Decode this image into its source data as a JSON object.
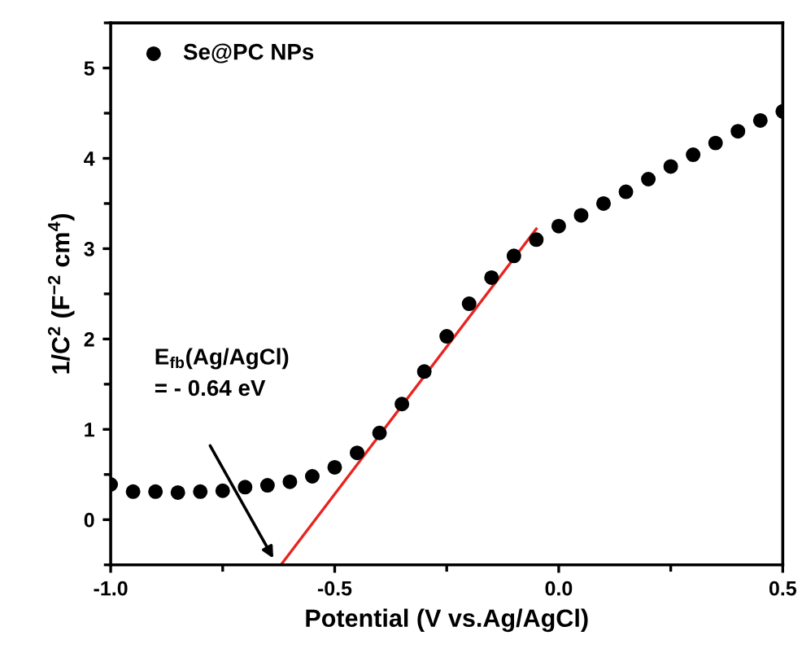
{
  "chart_data": {
    "type": "scatter",
    "xlabel": "Potential (V vs.Ag/AgCl)",
    "ylabel": "1/C$^{2}$ (F$^{−2}$ cm$^{4}$)",
    "xlim": [
      -1.0,
      0.5
    ],
    "xticks": [
      {
        "value": -1.0,
        "label": "-1.0"
      },
      {
        "value": -0.5,
        "label": "-0.5"
      },
      {
        "value": 0.0,
        "label": "0.0"
      },
      {
        "value": 0.5,
        "label": "0.5"
      }
    ],
    "ylim": [
      -0.5,
      5.5
    ],
    "yticks": [
      0,
      1,
      2,
      3,
      4,
      5
    ],
    "grid": false,
    "legend": "top left",
    "series": [
      {
        "name": "Se@PC NPs",
        "marker": "circle",
        "color": "#000000",
        "x": [
          -1.0,
          -0.95,
          -0.9,
          -0.85,
          -0.8,
          -0.75,
          -0.7,
          -0.65,
          -0.6,
          -0.55,
          -0.5,
          -0.45,
          -0.4,
          -0.35,
          -0.3,
          -0.25,
          -0.2,
          -0.15,
          -0.1,
          -0.05,
          0.0,
          0.05,
          0.1,
          0.15,
          0.2,
          0.25,
          0.3,
          0.35,
          0.4,
          0.45,
          0.5
        ],
        "values": [
          0.39,
          0.31,
          0.31,
          0.3,
          0.31,
          0.32,
          0.36,
          0.38,
          0.42,
          0.48,
          0.58,
          0.74,
          0.96,
          1.28,
          1.64,
          2.03,
          2.39,
          2.68,
          2.92,
          3.1,
          3.25,
          3.37,
          3.5,
          3.63,
          3.77,
          3.91,
          4.04,
          4.17,
          4.3,
          4.42,
          4.52
        ]
      },
      {
        "type": "line",
        "color": "#e8231f",
        "x": [
          -0.62,
          -0.05
        ],
        "values": [
          -0.5,
          3.22
        ]
      }
    ],
    "annotations": [
      "E$_{fb}$(Ag/AgCl)\n= - 0.64 eV"
    ]
  }
}
